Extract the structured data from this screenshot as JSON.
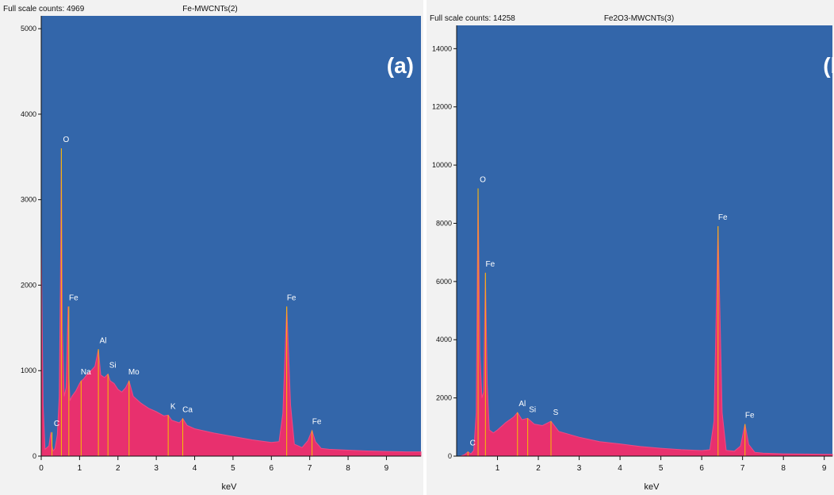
{
  "colors": {
    "plot_bg": "#3366aa",
    "spectrum_fill": "#e8306e",
    "spectrum_edge": "#f04a84",
    "peak_marker": "#f5c400",
    "frame_bg": "#f2f2f2",
    "text": "#111111",
    "label_text": "#ffffff"
  },
  "chart_data": [
    {
      "type": "area",
      "panel_label": "(a)",
      "title": "Fe-MWCNTs(2)",
      "header_left": "Full scale counts: 4969",
      "xlabel": "keV",
      "ylabel": "",
      "xlim": [
        0,
        9.9
      ],
      "ylim": [
        0,
        5150
      ],
      "x_ticks": [
        0,
        1,
        2,
        3,
        4,
        5,
        6,
        7,
        8,
        9
      ],
      "y_ticks": [
        0,
        1000,
        2000,
        3000,
        4000,
        5000
      ],
      "series": [
        {
          "x": [
            0.0,
            0.05,
            0.1,
            0.15,
            0.2,
            0.25,
            0.28,
            0.31,
            0.36,
            0.42,
            0.47,
            0.5,
            0.525,
            0.55,
            0.6,
            0.65,
            0.7,
            0.72,
            0.75,
            0.8,
            0.9,
            1.0,
            1.04,
            1.1,
            1.2,
            1.3,
            1.4,
            1.49,
            1.55,
            1.65,
            1.74,
            1.8,
            1.9,
            2.0,
            2.1,
            2.2,
            2.29,
            2.4,
            2.6,
            2.8,
            3.0,
            3.2,
            3.31,
            3.4,
            3.6,
            3.69,
            3.8,
            4.0,
            4.5,
            5.0,
            5.5,
            6.0,
            6.2,
            6.3,
            6.4,
            6.5,
            6.6,
            6.8,
            6.95,
            7.06,
            7.15,
            7.3,
            7.5,
            8.0,
            8.5,
            9.0,
            9.5,
            9.9
          ],
          "y": [
            2550,
            600,
            80,
            100,
            120,
            280,
            120,
            60,
            90,
            250,
            700,
            2000,
            3600,
            1500,
            700,
            800,
            1750,
            950,
            650,
            700,
            760,
            850,
            880,
            900,
            960,
            1000,
            1050,
            1250,
            950,
            920,
            960,
            880,
            850,
            780,
            750,
            800,
            880,
            700,
            620,
            560,
            520,
            470,
            480,
            420,
            390,
            440,
            360,
            320,
            270,
            230,
            190,
            160,
            170,
            500,
            1750,
            600,
            140,
            100,
            180,
            300,
            170,
            90,
            80,
            70,
            60,
            55,
            50,
            50
          ]
        }
      ],
      "annotations": [
        {
          "text": "C",
          "x": 0.28,
          "y": 280
        },
        {
          "text": "O",
          "x": 0.525,
          "y": 3600
        },
        {
          "text": "Fe",
          "x": 0.72,
          "y": 1750
        },
        {
          "text": "Na",
          "x": 1.04,
          "y": 880
        },
        {
          "text": "Al",
          "x": 1.49,
          "y": 1250
        },
        {
          "text": "Si",
          "x": 1.74,
          "y": 960
        },
        {
          "text": "Mo",
          "x": 2.29,
          "y": 880
        },
        {
          "text": "K",
          "x": 3.31,
          "y": 480
        },
        {
          "text": "Ca",
          "x": 3.69,
          "y": 440
        },
        {
          "text": "Fe",
          "x": 6.4,
          "y": 1750
        },
        {
          "text": "Fe",
          "x": 7.06,
          "y": 300
        }
      ]
    },
    {
      "type": "area",
      "panel_label": "(b)",
      "title": "Fe2O3-MWCNTs(3)",
      "header_left": "Full scale counts: 14258",
      "xlabel": "keV",
      "ylabel": "",
      "xlim": [
        0,
        9.2
      ],
      "ylim": [
        0,
        14800
      ],
      "x_ticks": [
        1,
        2,
        3,
        4,
        5,
        6,
        7,
        8,
        9
      ],
      "y_ticks": [
        0,
        2000,
        4000,
        6000,
        8000,
        10000,
        12000,
        14000
      ],
      "series": [
        {
          "x": [
            0.0,
            0.1,
            0.2,
            0.277,
            0.35,
            0.42,
            0.48,
            0.525,
            0.57,
            0.62,
            0.66,
            0.705,
            0.75,
            0.8,
            0.9,
            1.0,
            1.2,
            1.4,
            1.49,
            1.6,
            1.74,
            1.9,
            2.1,
            2.31,
            2.5,
            3.0,
            3.5,
            4.0,
            4.5,
            5.0,
            5.5,
            6.0,
            6.2,
            6.3,
            6.4,
            6.5,
            6.6,
            6.8,
            6.95,
            7.06,
            7.15,
            7.3,
            7.5,
            8.0,
            8.5,
            9.0,
            9.2
          ],
          "y": [
            0,
            0,
            60,
            150,
            80,
            200,
            1500,
            9200,
            3500,
            2000,
            2200,
            6300,
            2500,
            900,
            800,
            900,
            1150,
            1350,
            1500,
            1250,
            1300,
            1100,
            1050,
            1200,
            850,
            650,
            500,
            420,
            330,
            270,
            220,
            190,
            220,
            1200,
            7900,
            1500,
            200,
            170,
            350,
            1100,
            400,
            130,
            100,
            80,
            70,
            60,
            60
          ]
        }
      ],
      "annotations": [
        {
          "text": "C",
          "x": 0.277,
          "y": 150
        },
        {
          "text": "O",
          "x": 0.525,
          "y": 9200
        },
        {
          "text": "Fe",
          "x": 0.705,
          "y": 6300
        },
        {
          "text": "Al",
          "x": 1.49,
          "y": 1500
        },
        {
          "text": "Si",
          "x": 1.74,
          "y": 1300
        },
        {
          "text": "S",
          "x": 2.31,
          "y": 1200
        },
        {
          "text": "Fe",
          "x": 6.4,
          "y": 7900
        },
        {
          "text": "Fe",
          "x": 7.06,
          "y": 1100
        }
      ]
    }
  ]
}
